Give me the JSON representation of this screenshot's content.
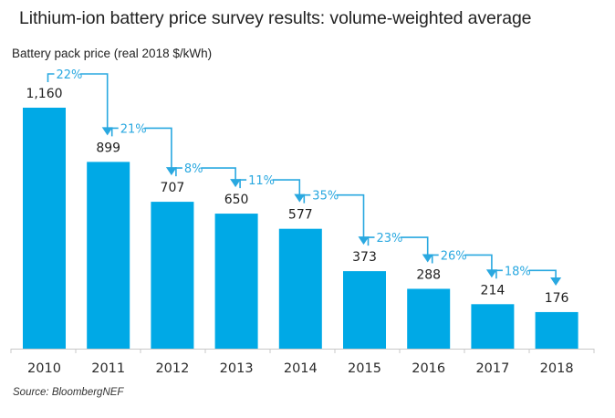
{
  "chart_data": {
    "type": "bar",
    "title": "Lithium-ion battery price survey results: volume-weighted average",
    "ylabel": "Battery pack price (real 2018 $/kWh)",
    "xlabel": "",
    "categories": [
      "2010",
      "2011",
      "2012",
      "2013",
      "2014",
      "2015",
      "2016",
      "2017",
      "2018"
    ],
    "values": [
      1160,
      899,
      707,
      650,
      577,
      373,
      288,
      214,
      176
    ],
    "value_labels": [
      "1,160",
      "899",
      "707",
      "650",
      "577",
      "373",
      "288",
      "214",
      "176"
    ],
    "annotations": [
      {
        "from": "2010",
        "to": "2011",
        "label": "22%"
      },
      {
        "from": "2011",
        "to": "2012",
        "label": "21%"
      },
      {
        "from": "2012",
        "to": "2013",
        "label": "8%"
      },
      {
        "from": "2013",
        "to": "2014",
        "label": "11%"
      },
      {
        "from": "2014",
        "to": "2015",
        "label": "35%"
      },
      {
        "from": "2015",
        "to": "2016",
        "label": "23%"
      },
      {
        "from": "2016",
        "to": "2017",
        "label": "26%"
      },
      {
        "from": "2017",
        "to": "2018",
        "label": "18%"
      }
    ],
    "ylim": [
      0,
      1160
    ],
    "grid": false,
    "legend": "none",
    "colors": {
      "bar": "#00a9e6",
      "annotation": "#29a8e0",
      "axis": "#c8c8c8"
    }
  },
  "source": "Source: BloombergNEF"
}
